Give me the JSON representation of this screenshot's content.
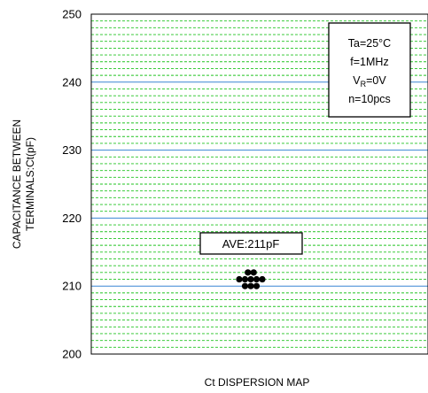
{
  "chart_data": {
    "type": "scatter",
    "title": "",
    "xlabel": "Ct DISPERSION MAP",
    "ylabel": [
      "CAPACITANCE BETWEEN",
      "TERMINALS:Ct(pF)"
    ],
    "ylim": [
      200,
      250
    ],
    "yticks": [
      200,
      210,
      220,
      230,
      240,
      250
    ],
    "grid": true,
    "grid_colors": {
      "major": "#3a86d4",
      "minor": "#22c322"
    },
    "point_color": "#000000",
    "points": [
      {
        "y": 212
      },
      {
        "y": 212
      },
      {
        "y": 211
      },
      {
        "y": 211
      },
      {
        "y": 211
      },
      {
        "y": 211
      },
      {
        "y": 211
      },
      {
        "y": 210
      },
      {
        "y": 210
      },
      {
        "y": 210
      }
    ],
    "annotation": "AVE:211pF",
    "conditions": [
      {
        "text": "Ta=25°C"
      },
      {
        "text": "f=1MHz"
      },
      {
        "text": "V",
        "sub": "R",
        "suffix": "=0V"
      },
      {
        "text": "n=10pcs"
      }
    ]
  }
}
